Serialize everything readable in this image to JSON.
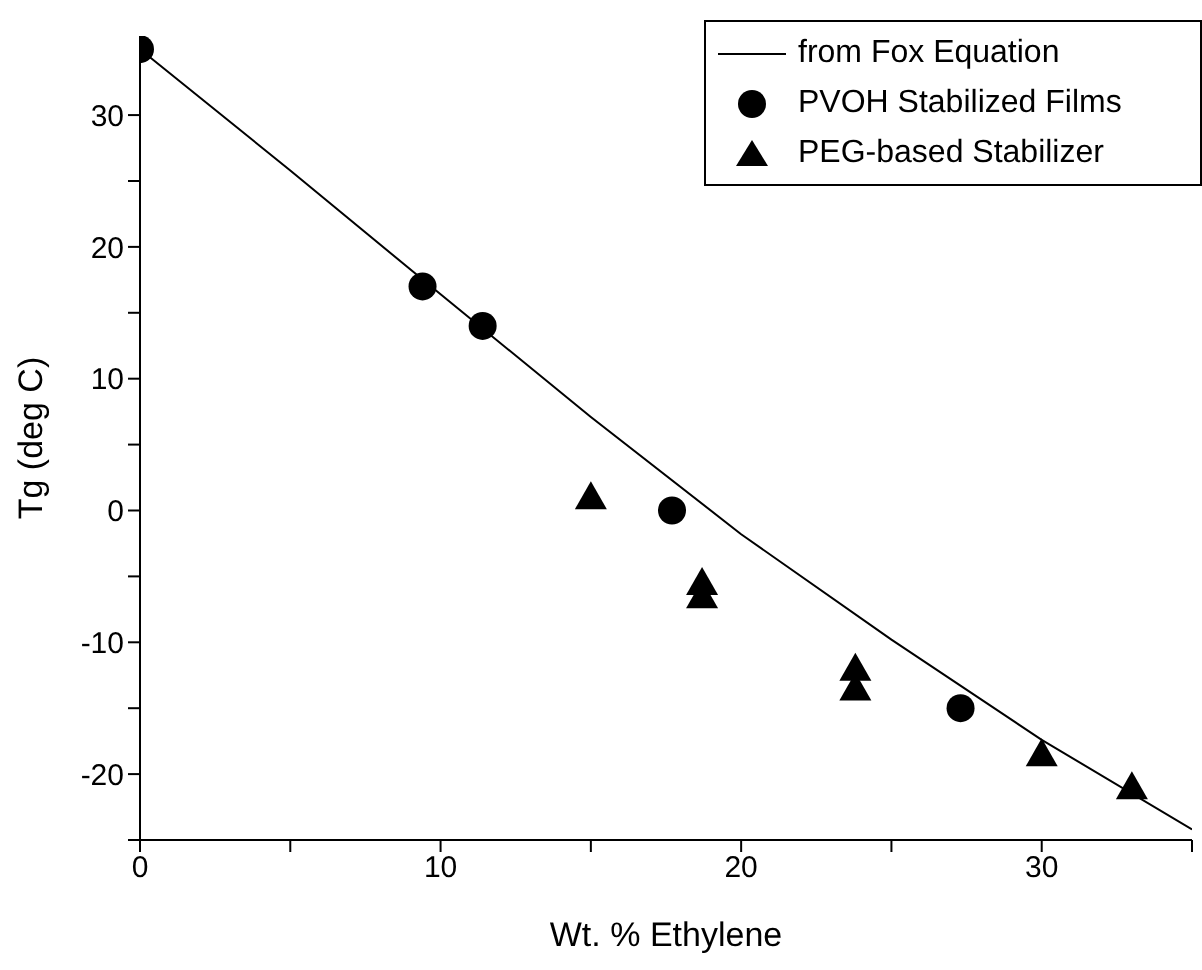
{
  "chart_data": {
    "type": "scatter",
    "xlabel": "Wt. % Ethylene",
    "ylabel": "Tg (deg C)",
    "xlim": [
      0,
      35
    ],
    "xticks": [
      0,
      {
        "value": 5,
        "label": null
      },
      10,
      {
        "value": 15,
        "label": null
      },
      20,
      {
        "value": 25,
        "label": null
      },
      30,
      {
        "value": 35,
        "label": null
      }
    ],
    "ylim": [
      -25,
      36
    ],
    "yticks": [
      {
        "value": -25,
        "label": null
      },
      -20,
      {
        "value": -15,
        "label": null
      },
      -10,
      {
        "value": -5,
        "label": null
      },
      0,
      {
        "value": 5,
        "label": null
      },
      10,
      {
        "value": 15,
        "label": null
      },
      20,
      {
        "value": 25,
        "label": null
      },
      30
    ],
    "grid": false,
    "legend": "top right",
    "series": [
      {
        "name": "from Fox Equation",
        "type": "line",
        "marker": "none",
        "line_style": "solid",
        "color": "#000000",
        "x": [
          0,
          5,
          10,
          15,
          20,
          25,
          30,
          35
        ],
        "values": [
          35,
          25.8,
          16.4,
          7.1,
          -1.8,
          -9.8,
          -17.4,
          -24.2
        ]
      },
      {
        "name": "PVOH Stabilized Films",
        "marker": "circle",
        "color": "#000000",
        "x": [
          0,
          9.4,
          11.4,
          17.7,
          27.3
        ],
        "values": [
          35,
          17,
          14,
          0,
          -15
        ]
      },
      {
        "name": "PEG-based Stabilizer",
        "marker": "triangle",
        "color": "#000000",
        "x": [
          15,
          18.7,
          18.7,
          23.8,
          23.8,
          30,
          33
        ],
        "values": [
          1,
          -5.5,
          -6.5,
          -12,
          -13.5,
          -18.5,
          -21
        ]
      }
    ]
  }
}
